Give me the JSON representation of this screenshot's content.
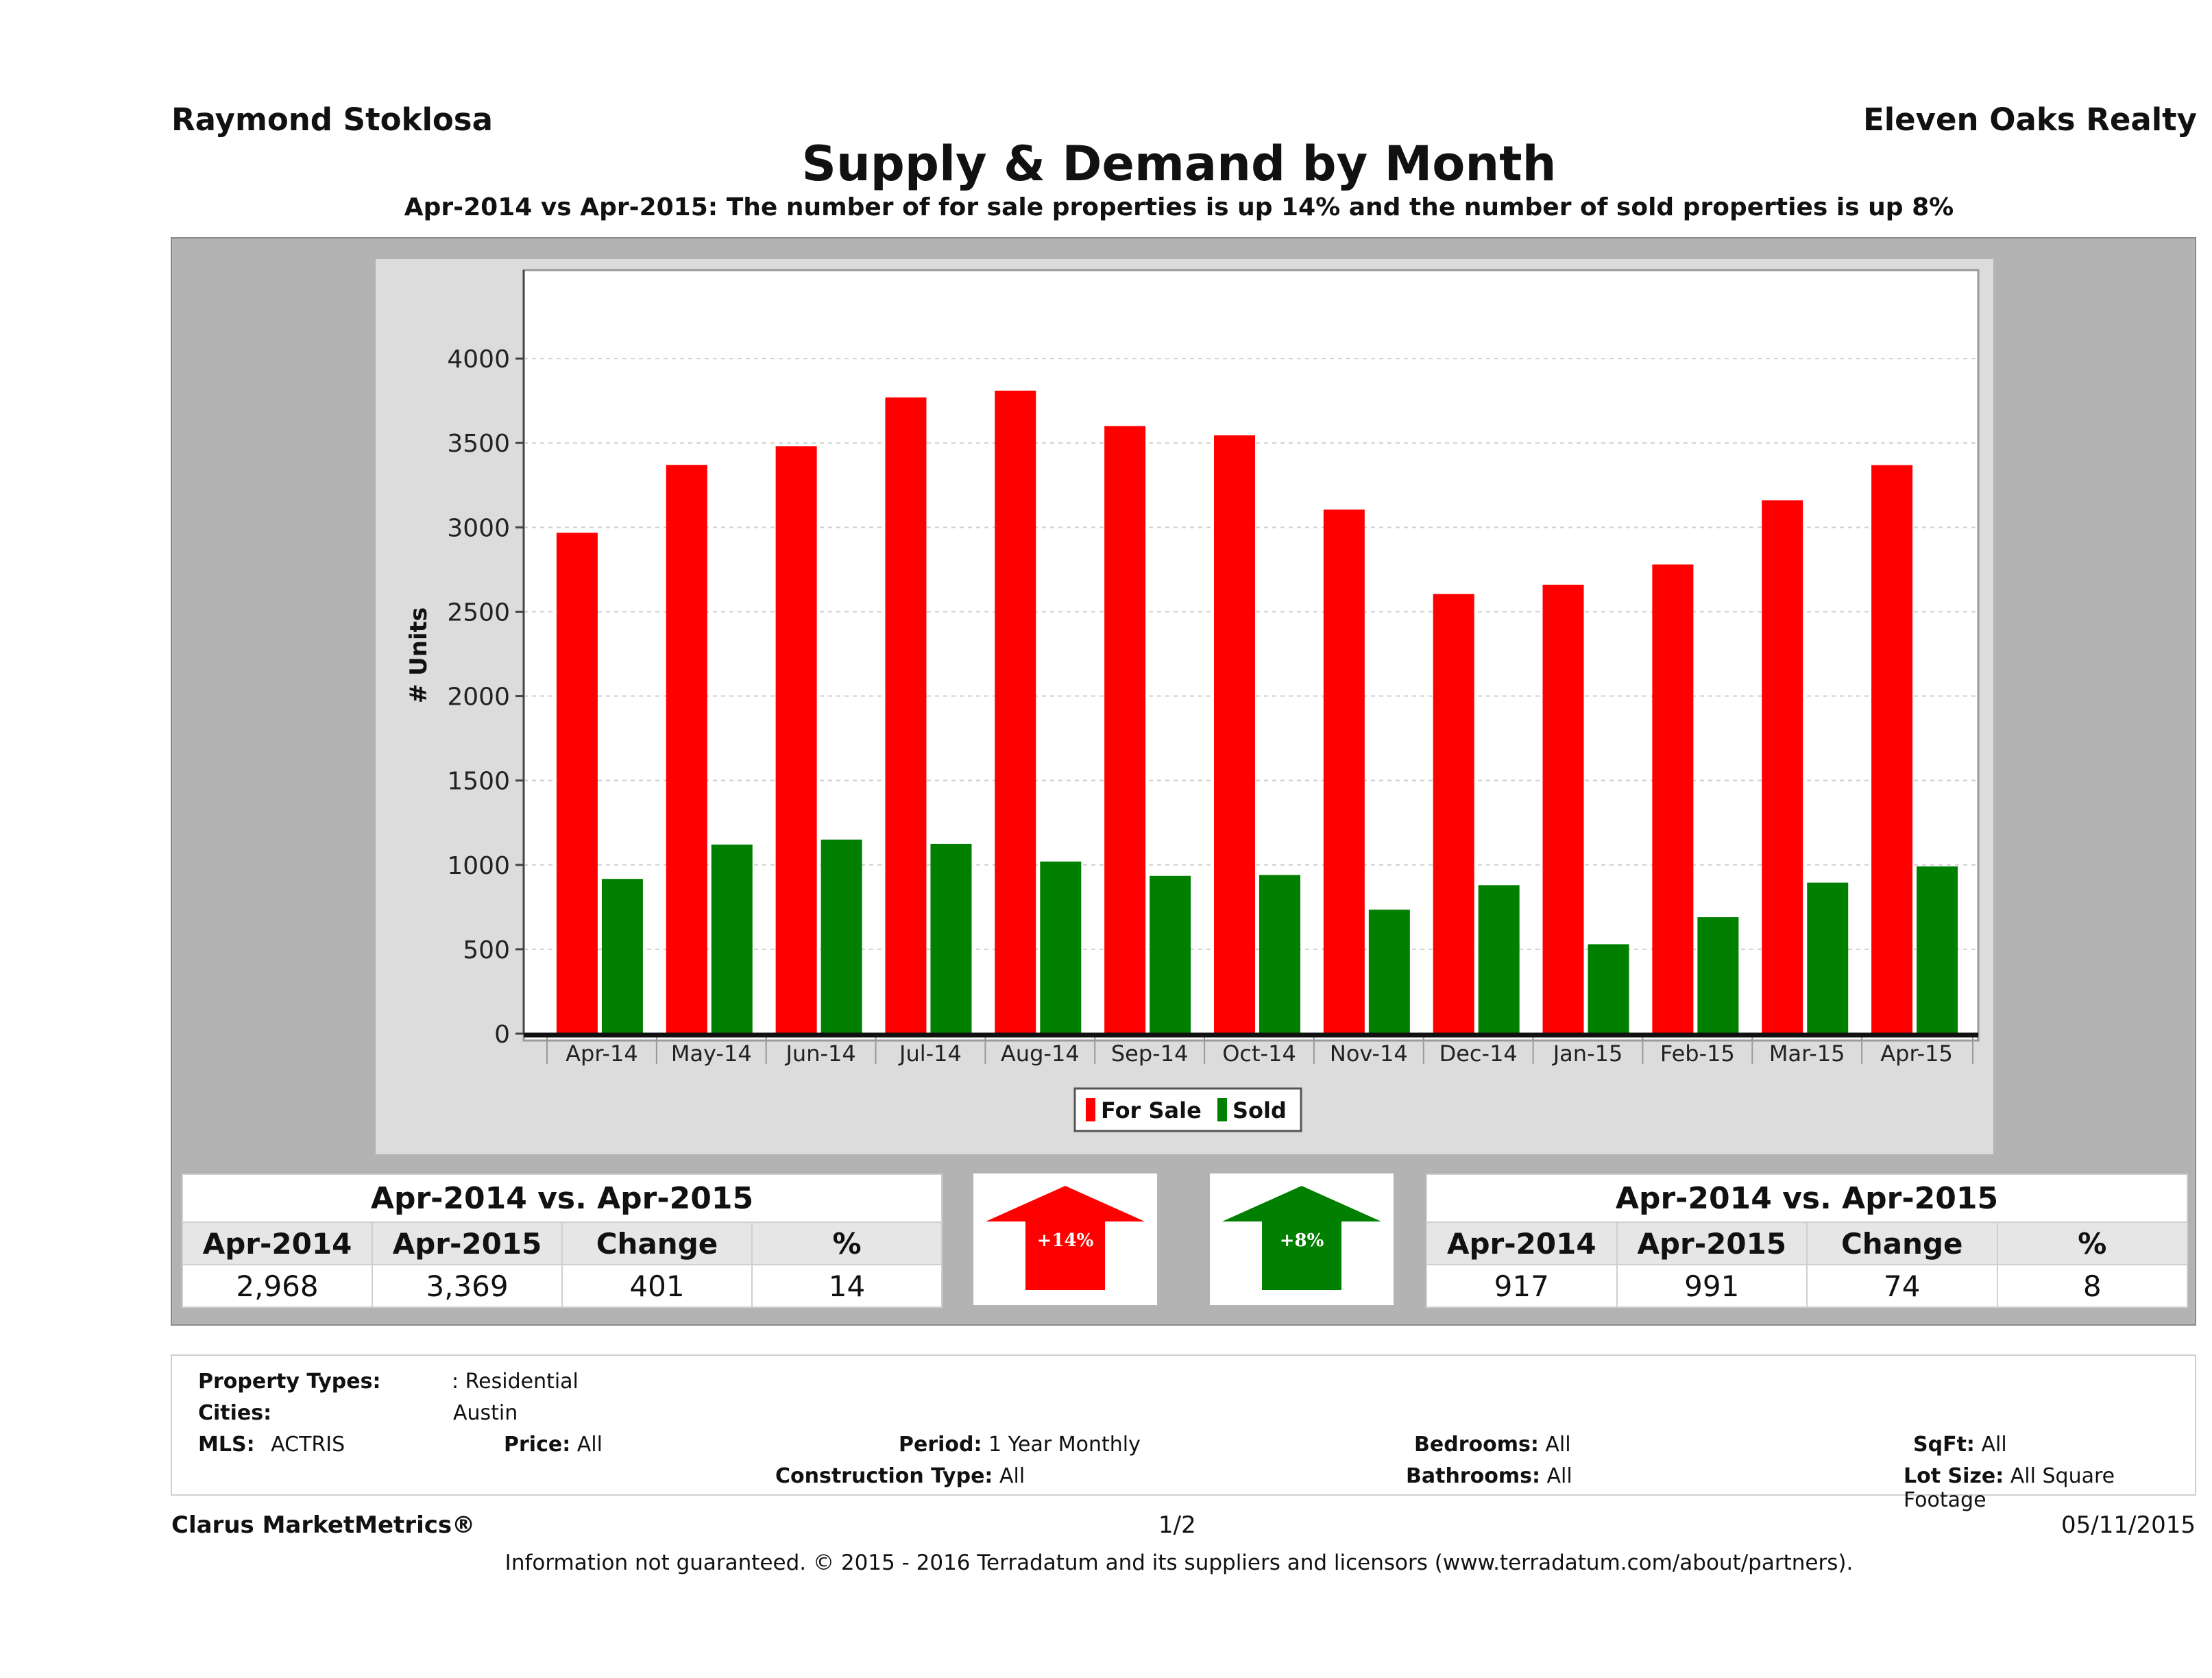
{
  "header": {
    "agent": "Raymond Stoklosa",
    "brokerage": "Eleven Oaks Realty",
    "title": "Supply & Demand by Month",
    "subtitle": "Apr-2014 vs Apr-2015: The number of for sale properties is up 14% and the number of sold properties is up 8%"
  },
  "chart_data": {
    "type": "bar",
    "title": "Supply & Demand by Month",
    "xlabel": "",
    "ylabel": "# Units",
    "ylim": [
      0,
      4500
    ],
    "yticks": [
      0,
      500,
      1000,
      1500,
      2000,
      2500,
      3000,
      3500,
      4000
    ],
    "grid": true,
    "legend_position": "bottom",
    "categories": [
      "Apr-14",
      "May-14",
      "Jun-14",
      "Jul-14",
      "Aug-14",
      "Sep-14",
      "Oct-14",
      "Nov-14",
      "Dec-14",
      "Jan-15",
      "Feb-15",
      "Mar-15",
      "Apr-15"
    ],
    "series": [
      {
        "name": "For Sale",
        "color": "#ff0000",
        "values": [
          2968,
          3370,
          3480,
          3770,
          3810,
          3600,
          3545,
          3105,
          2605,
          2660,
          2780,
          3160,
          3369
        ]
      },
      {
        "name": "Sold",
        "color": "#007f00",
        "values": [
          917,
          1120,
          1150,
          1125,
          1020,
          935,
          940,
          735,
          880,
          530,
          690,
          895,
          991
        ]
      }
    ]
  },
  "for_sale_stats": {
    "heading": "Apr-2014 vs. Apr-2015",
    "columns": [
      "Apr-2014",
      "Apr-2015",
      "Change",
      "%"
    ],
    "values": [
      "2,968",
      "3,369",
      "401",
      "14"
    ],
    "arrow_label": "+14%",
    "arrow_color": "#ff0000"
  },
  "sold_stats": {
    "heading": "Apr-2014 vs. Apr-2015",
    "columns": [
      "Apr-2014",
      "Apr-2015",
      "Change",
      "%"
    ],
    "values": [
      "917",
      "991",
      "74",
      "8"
    ],
    "arrow_label": "+8%",
    "arrow_color": "#007f00"
  },
  "criteria": {
    "property_types_label": "Property Types:",
    "property_types_value": ": Residential",
    "cities_label": "Cities:",
    "cities_value": "Austin",
    "mls_label": "MLS:",
    "mls_value": "ACTRIS",
    "price_label": "Price:",
    "price_value": "All",
    "period_label": "Period:",
    "period_value": "1 Year Monthly",
    "construction_label": "Construction Type:",
    "construction_value": "All",
    "bedrooms_label": "Bedrooms:",
    "bedrooms_value": "All",
    "bathrooms_label": "Bathrooms:",
    "bathrooms_value": "All",
    "sqft_label": "SqFt:",
    "sqft_value": "All",
    "lot_label": "Lot Size:",
    "lot_value": "All Square Footage"
  },
  "footer": {
    "brand": "Clarus MarketMetrics®",
    "page": "1/2",
    "date": "05/11/2015",
    "disclaimer": "Information not guaranteed. © 2015 - 2016 Terradatum and its suppliers and licensors (www.terradatum.com/about/partners)."
  }
}
